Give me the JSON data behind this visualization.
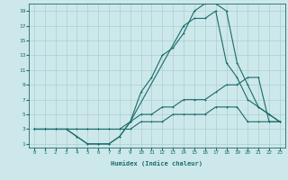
{
  "xlabel": "Humidex (Indice chaleur)",
  "bg_color": "#cde8ea",
  "grid_color": "#aacfd2",
  "line_color": "#1a6b6b",
  "xlim": [
    -0.5,
    23.5
  ],
  "ylim": [
    0.5,
    20
  ],
  "xticks": [
    0,
    1,
    2,
    3,
    4,
    5,
    6,
    7,
    8,
    9,
    10,
    11,
    12,
    13,
    14,
    15,
    16,
    17,
    18,
    19,
    20,
    21,
    22,
    23
  ],
  "yticks": [
    1,
    3,
    5,
    7,
    9,
    11,
    13,
    15,
    17,
    19
  ],
  "line1_x": [
    0,
    1,
    2,
    3,
    4,
    5,
    6,
    7,
    8,
    9,
    10,
    11,
    12,
    13,
    14,
    15,
    16,
    17,
    18,
    19,
    20,
    21,
    22,
    23
  ],
  "line1_y": [
    3,
    3,
    3,
    3,
    2,
    1,
    1,
    1,
    2,
    4,
    8,
    10,
    13,
    14,
    16,
    19,
    20,
    20,
    19,
    12,
    9,
    6,
    5,
    4
  ],
  "line2_x": [
    0,
    1,
    2,
    3,
    4,
    5,
    6,
    7,
    8,
    9,
    10,
    11,
    12,
    13,
    14,
    15,
    16,
    17,
    18,
    19,
    20,
    21,
    22,
    23
  ],
  "line2_y": [
    3,
    3,
    3,
    3,
    3,
    3,
    3,
    3,
    3,
    4,
    5,
    5,
    6,
    6,
    7,
    7,
    7,
    8,
    9,
    9,
    10,
    10,
    4,
    4
  ],
  "line3_x": [
    0,
    1,
    2,
    3,
    4,
    5,
    6,
    7,
    8,
    9,
    10,
    11,
    12,
    13,
    14,
    15,
    16,
    17,
    18,
    19,
    20,
    21,
    22,
    23
  ],
  "line3_y": [
    3,
    3,
    3,
    3,
    3,
    3,
    3,
    3,
    3,
    3,
    4,
    4,
    4,
    5,
    5,
    5,
    5,
    6,
    6,
    6,
    4,
    4,
    4,
    4
  ],
  "line4_x": [
    0,
    1,
    2,
    3,
    4,
    5,
    6,
    7,
    8,
    9,
    14,
    15,
    16,
    17,
    18,
    19,
    20,
    21,
    22,
    23
  ],
  "line4_y": [
    3,
    3,
    3,
    3,
    2,
    1,
    1,
    1,
    2,
    4,
    17,
    18,
    18,
    19,
    12,
    10,
    7,
    6,
    5,
    4
  ]
}
